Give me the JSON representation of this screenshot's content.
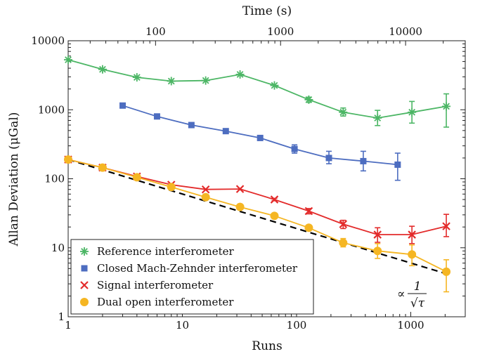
{
  "chart_data": {
    "type": "scatter",
    "title": "",
    "xlabel": "Runs",
    "ylabel": "Allan Deviation (μGal)",
    "top_xlabel": "Time (s)",
    "x_scale": "log",
    "y_scale": "log",
    "xlim": [
      1,
      3000
    ],
    "ylim": [
      1,
      10000
    ],
    "top_xlim": [
      20,
      30000
    ],
    "x_ticks": [
      "1",
      "10",
      "100",
      "1000"
    ],
    "y_ticks": [
      "1",
      "10",
      "100",
      "1000",
      "10000"
    ],
    "top_x_ticks": [
      "100",
      "1000",
      "10000"
    ],
    "grid": false,
    "legend_position": "bottom-left",
    "annotation": {
      "prefix": "∝",
      "numerator": "1",
      "denominator": "√τ"
    },
    "reference_line": {
      "style": "dashed",
      "color": "#000000",
      "x": [
        1,
        2048
      ],
      "y": [
        190,
        4.2
      ]
    },
    "series": [
      {
        "name": "Reference interferometer",
        "color": "#4cb665",
        "marker": "asterisk",
        "x": [
          1,
          2,
          4,
          8,
          16,
          32,
          64,
          128,
          256,
          512,
          1024,
          2048
        ],
        "y": [
          5300,
          3850,
          2950,
          2600,
          2650,
          3250,
          2250,
          1400,
          920,
          760,
          920,
          1120
        ],
        "err_low": [
          0,
          0,
          0,
          0,
          0,
          0,
          0,
          120,
          110,
          170,
          280,
          560
        ],
        "err_high": [
          0,
          0,
          0,
          0,
          0,
          0,
          0,
          120,
          140,
          220,
          400,
          580
        ]
      },
      {
        "name": "Closed Mach-Zehnder interferometer",
        "color": "#4d6dc0",
        "marker": "square",
        "x": [
          3,
          6,
          12,
          24,
          48,
          96,
          192,
          384,
          768
        ],
        "y": [
          1150,
          800,
          600,
          490,
          390,
          270,
          200,
          180,
          160
        ],
        "err_low": [
          0,
          0,
          0,
          0,
          30,
          35,
          35,
          50,
          65
        ],
        "err_high": [
          0,
          0,
          0,
          0,
          30,
          40,
          50,
          70,
          75
        ]
      },
      {
        "name": "Signal interferometer",
        "color": "#e32b2b",
        "marker": "x",
        "x": [
          1,
          2,
          4,
          8,
          16,
          32,
          64,
          128,
          256,
          512,
          1024,
          2048
        ],
        "y": [
          190,
          145,
          108,
          82,
          70,
          71,
          50,
          34,
          22,
          15.5,
          15.5,
          20.5
        ],
        "err_low": [
          0,
          0,
          0,
          0,
          0,
          0,
          2,
          3,
          3,
          3.5,
          4,
          6
        ],
        "err_high": [
          0,
          0,
          0,
          0,
          0,
          0,
          2,
          3,
          3,
          4,
          5,
          10
        ]
      },
      {
        "name": "Dual open interferometer",
        "color": "#f5b623",
        "marker": "circle",
        "x": [
          1,
          2,
          4,
          8,
          16,
          32,
          64,
          128,
          256,
          512,
          1024,
          2048
        ],
        "y": [
          190,
          145,
          105,
          76,
          54,
          39,
          29,
          19.5,
          11.8,
          9.0,
          8.0,
          4.5
        ],
        "err_low": [
          0,
          0,
          0,
          0,
          0,
          0,
          0,
          1.5,
          1.5,
          2,
          2.5,
          2.2
        ],
        "err_high": [
          0,
          0,
          0,
          0,
          0,
          0,
          0,
          1.5,
          1.8,
          2.5,
          3,
          2.2
        ]
      }
    ]
  }
}
